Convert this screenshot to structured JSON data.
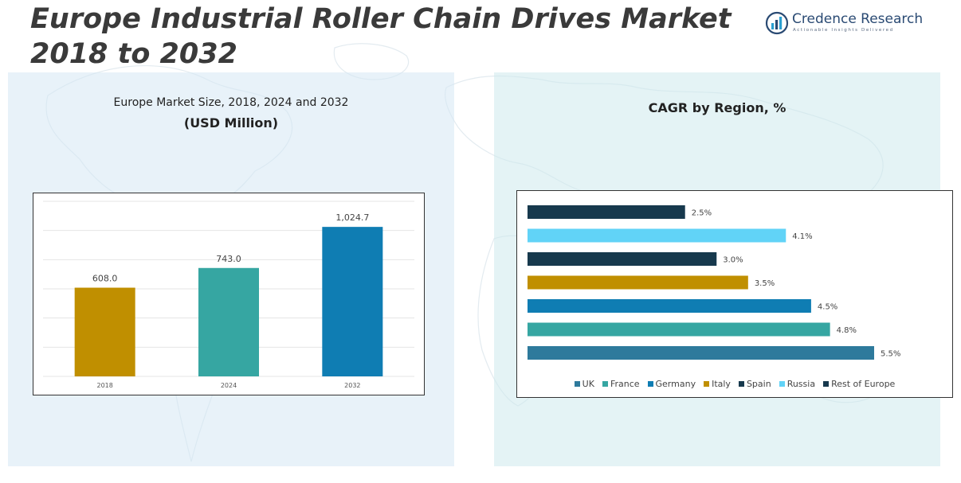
{
  "header": {
    "title_line1": "Europe Industrial Roller Chain Drives Market",
    "title_line2": "2018 to 2032"
  },
  "logo": {
    "name": "Credence Research",
    "tagline": "Actionable Insights Delivered",
    "icon": "bar-chart-globe-icon"
  },
  "colors": {
    "uk": "#2e7a9c",
    "france": "#36a6a2",
    "germany": "#0f7db3",
    "italy": "#c08f00",
    "spain": "#17394d",
    "russia": "#61d3f7",
    "rest_of_europe": "#17394d"
  },
  "chart_data": [
    {
      "type": "bar",
      "title": "Europe Market Size, 2018, 2024 and 2032",
      "subtitle": "(USD Million)",
      "categories": [
        "2018",
        "2024",
        "2032"
      ],
      "values": [
        608.0,
        743.0,
        1024.7
      ],
      "data_labels": [
        "608.0",
        "743.0",
        "1,024.7"
      ],
      "bar_colors": [
        "#c08f00",
        "#36a6a2",
        "#0f7db3"
      ],
      "ylim": [
        0,
        1200
      ],
      "grid": true
    },
    {
      "type": "bar",
      "orientation": "horizontal",
      "title": "CAGR by Region, %",
      "categories": [
        "Rest of Europe",
        "Russia",
        "Spain",
        "Italy",
        "Germany",
        "France",
        "UK"
      ],
      "values": [
        2.5,
        4.1,
        3.0,
        3.5,
        4.5,
        4.8,
        5.5
      ],
      "data_labels": [
        "2.5%",
        "4.1%",
        "3.0%",
        "3.5%",
        "4.5%",
        "4.8%",
        "5.5%"
      ],
      "bar_colors": [
        "#17394d",
        "#61d3f7",
        "#17394d",
        "#c08f00",
        "#0f7db3",
        "#36a6a2",
        "#2e7a9c"
      ],
      "xlim": [
        0,
        5.5
      ],
      "legend": [
        "UK",
        "France",
        "Germany",
        "Italy",
        "Spain",
        "Russia",
        "Rest of Europe"
      ],
      "legend_colors": [
        "#2e7a9c",
        "#36a6a2",
        "#0f7db3",
        "#c08f00",
        "#17394d",
        "#61d3f7",
        "#17394d"
      ],
      "legend_position": "bottom"
    }
  ]
}
